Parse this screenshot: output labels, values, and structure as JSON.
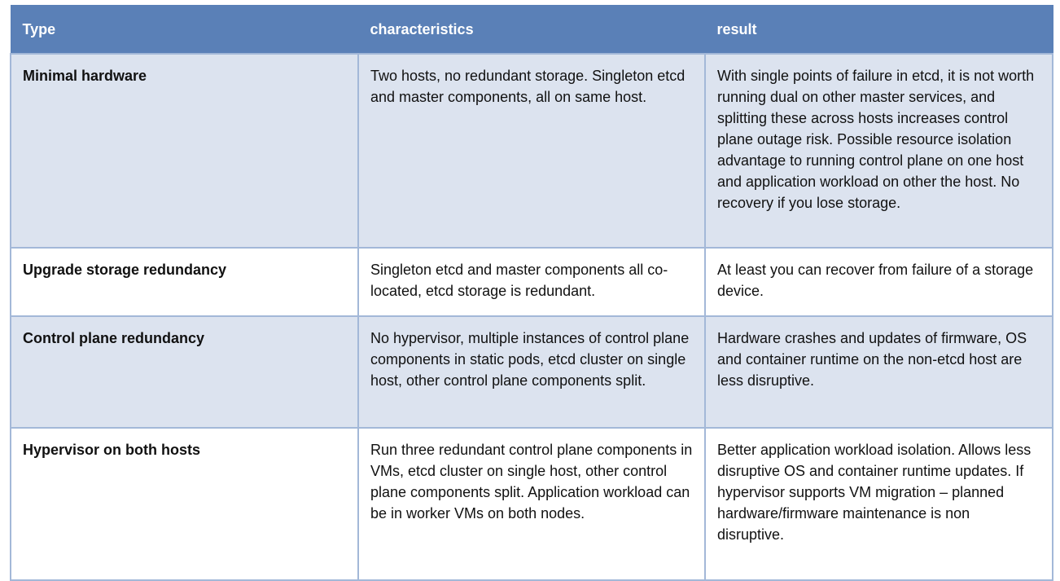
{
  "header": {
    "type": "Type",
    "characteristics": "characteristics",
    "result": "result"
  },
  "rows": [
    {
      "type": "Minimal hardware",
      "characteristics": "Two hosts, no redundant storage. Singleton etcd and master components, all on same host.",
      "result": "With single points of failure in etcd, it is not worth running dual on other master services, and splitting these across hosts increases control plane outage risk. Possible resource isolation advantage to running control plane on one host and application workload on other the host. No recovery if you lose storage."
    },
    {
      "type": "Upgrade storage redundancy",
      "characteristics": "Singleton etcd and master components all co-located, etcd storage is redundant.",
      "result": "At least you can recover from failure of a storage device."
    },
    {
      "type": "Control plane redundancy",
      "characteristics": "No hypervisor, multiple instances of control plane components in static pods, etcd cluster on single host, other control plane components split.",
      "result": "Hardware crashes and updates of firmware, OS and container runtime on the non-etcd host are less disruptive."
    },
    {
      "type": "Hypervisor on both hosts",
      "characteristics": "Run three redundant control plane components in VMs, etcd cluster on single host, other control plane components split. Application workload can be in worker VMs on both nodes.",
      "result": "Better application workload isolation. Allows less disruptive OS and container runtime updates. If hypervisor supports VM migration – planned hardware/firmware maintenance is non disruptive."
    }
  ],
  "colors": {
    "header_bg": "#5a80b7",
    "row_shade": "#dce3ef",
    "border": "#a3b8d8"
  }
}
